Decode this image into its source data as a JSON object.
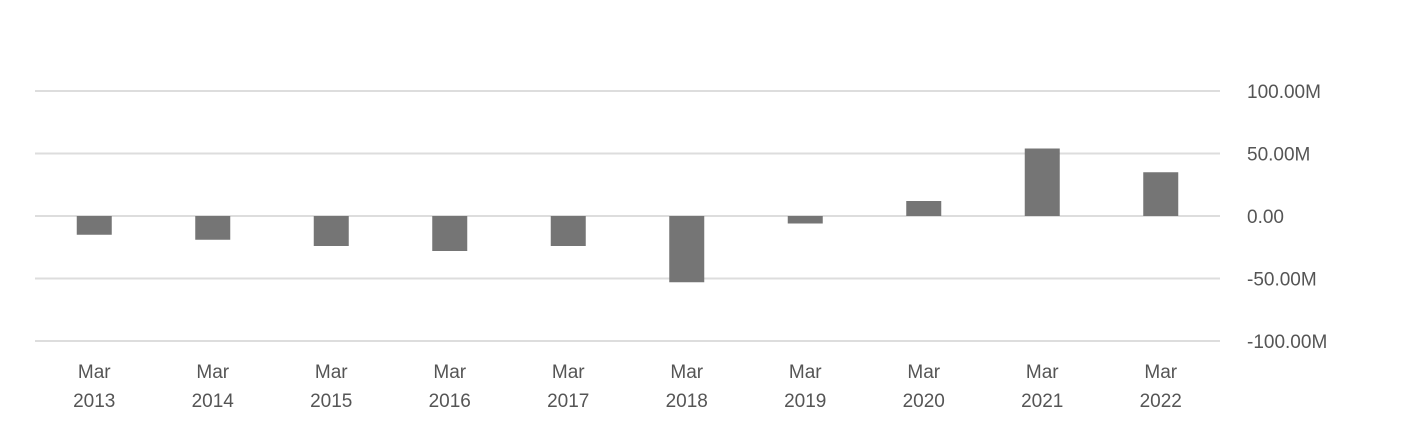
{
  "chart_data": {
    "type": "bar",
    "categories": [
      "Mar 2013",
      "Mar 2014",
      "Mar 2015",
      "Mar 2016",
      "Mar 2017",
      "Mar 2018",
      "Mar 2019",
      "Mar 2020",
      "Mar 2021",
      "Mar 2022"
    ],
    "values": [
      -15000000,
      -19000000,
      -24000000,
      -28000000,
      -24000000,
      -53000000,
      -6000000,
      12000000,
      54000000,
      35000000
    ],
    "color": "#757575",
    "ylim": [
      -100000000,
      100000000
    ],
    "yticks": [
      {
        "value": -100000000,
        "label": "-100.00M"
      },
      {
        "value": -50000000,
        "label": "-50.00M"
      },
      {
        "value": 0,
        "label": "0.00"
      },
      {
        "value": 50000000,
        "label": "50.00M"
      },
      {
        "value": 100000000,
        "label": "100.00M"
      }
    ],
    "grid": true
  }
}
